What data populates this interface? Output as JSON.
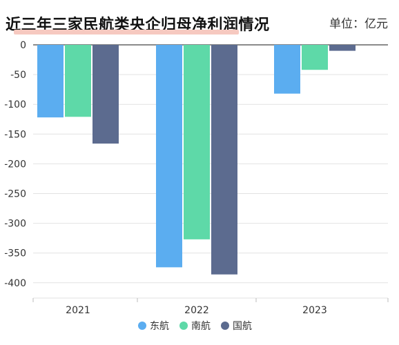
{
  "title": "近三年三家民航类央企归母净利润情况",
  "unit_label": "单位：亿元",
  "chart_data": {
    "type": "bar",
    "title": "近三年三家民航类央企归母净利润情况",
    "unit": "单位：亿元",
    "categories": [
      "2021",
      "2022",
      "2023"
    ],
    "series": [
      {
        "name": "东航",
        "color": "#5badf0",
        "values": [
          -122,
          -374,
          -82
        ]
      },
      {
        "name": "南航",
        "color": "#5ed9a8",
        "values": [
          -121,
          -327,
          -42
        ]
      },
      {
        "name": "国航",
        "color": "#5c6b8f",
        "values": [
          -166,
          -386,
          -10
        ]
      }
    ],
    "ylim": [
      -430,
      0
    ],
    "yticks": [
      "0",
      "-50",
      "-100",
      "-150",
      "-200",
      "-250",
      "-300",
      "-350",
      "-400"
    ],
    "ytick_values": [
      0,
      -50,
      -100,
      -150,
      -200,
      -250,
      -300,
      -350,
      -400
    ],
    "grid": true,
    "legend": "bottom-center"
  }
}
